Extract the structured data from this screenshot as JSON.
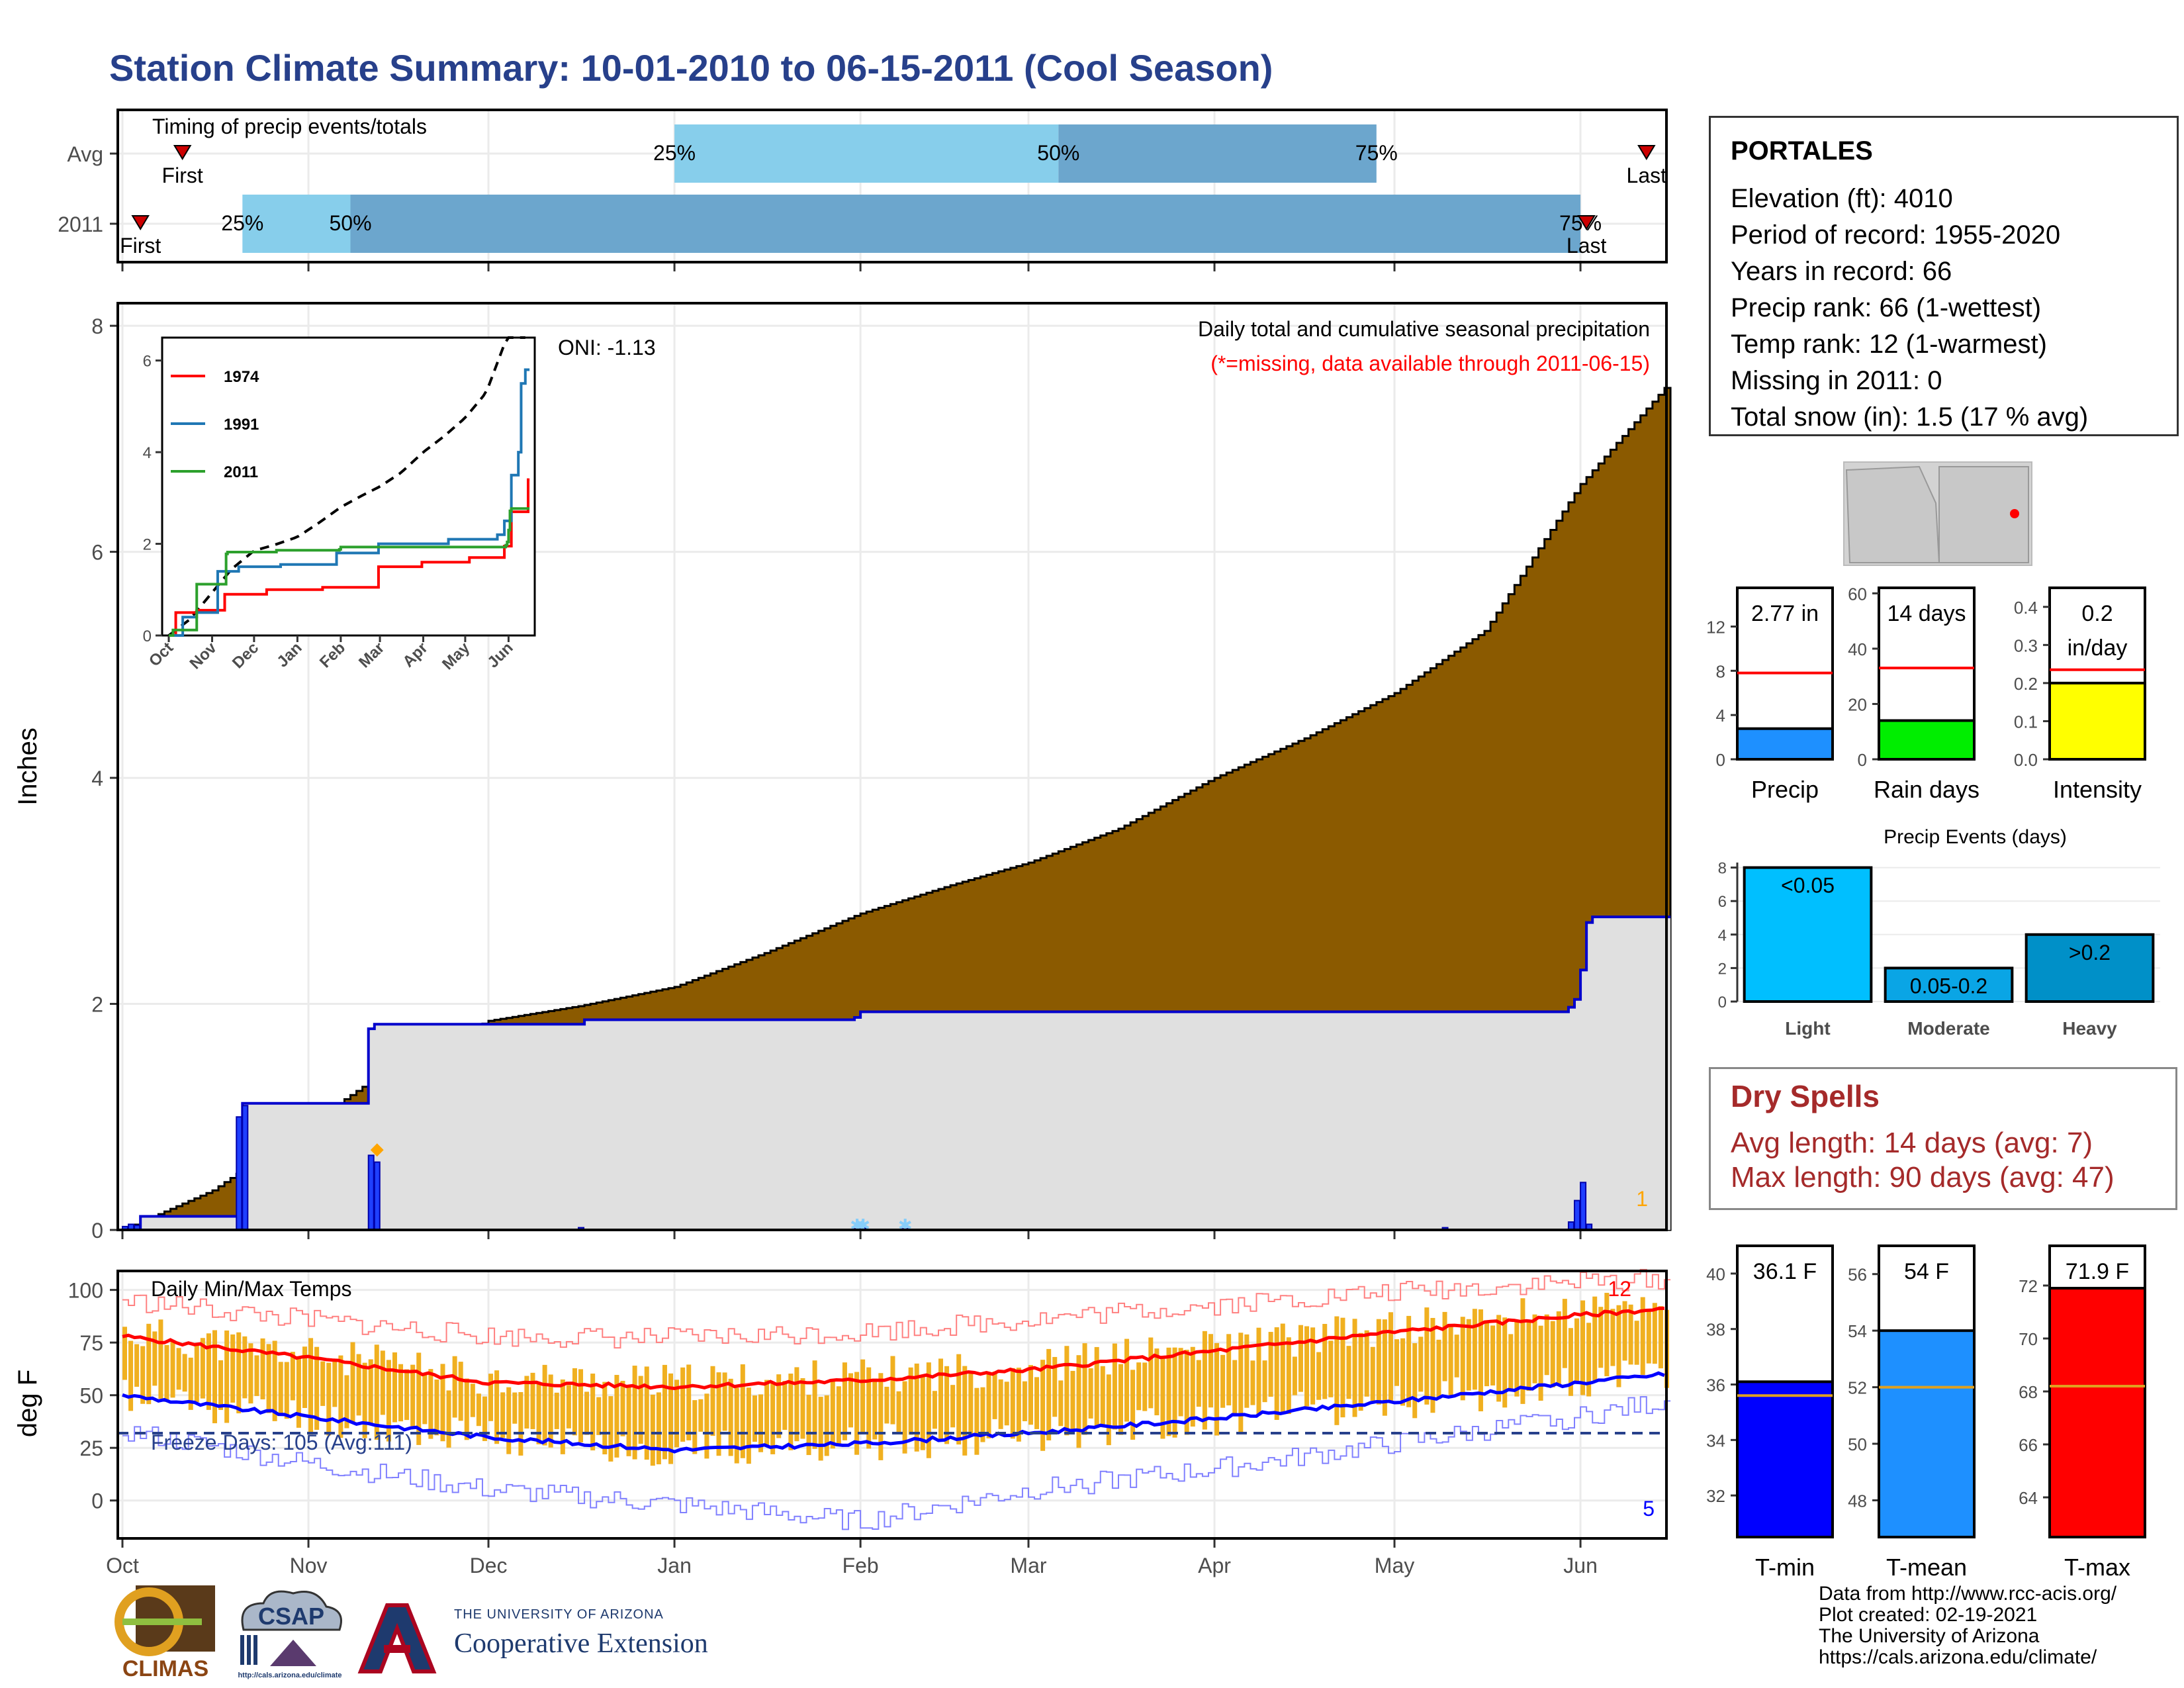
{
  "page": {
    "title": "Station Climate Summary: 10-01-2010 to 06-15-2011 (Cool Season)"
  },
  "colors": {
    "title_blue": "#27408B",
    "cum_fill": "#8B5A00",
    "avg_fill": "#E0E0E0",
    "daily_bar": "#1F3FFF",
    "timing_light": "#87CEEB",
    "timing_dark": "#6CA6CD",
    "temp_bar": "#F0B020",
    "tmax_line": "#FF0000",
    "tmin_line": "#0000FF",
    "freeze_line": "#27408B",
    "dry_red": "#A52A2A"
  },
  "station": {
    "name": "PORTALES",
    "lines": [
      "Elevation (ft): 4010",
      "Period of record: 1955-2020",
      "Years in record: 66",
      "Precip rank: 66 (1-wettest)",
      "Temp rank: 12 (1-warmest)",
      "Missing in 2011: 0",
      "Total snow (in): 1.5 (17 % avg)"
    ]
  },
  "dry_spells": {
    "title": "Dry Spells",
    "avg_line": "Avg length: 14 days (avg: 7)",
    "max_line": "Max length: 90 days (avg: 47)"
  },
  "credits": {
    "lines": [
      "Data from http://www.rcc-acis.org/",
      "Plot created: 02-19-2021",
      "The University of Arizona",
      "https://cals.arizona.edu/climate/"
    ]
  },
  "logos": {
    "climas": "CLIMAS",
    "csap": "CSAP",
    "csap_url": "http://cals.arizona.edu/climate",
    "ua_small": "THE UNIVERSITY OF ARIZONA",
    "ua_big": "Cooperative Extension"
  },
  "chart_data": [
    {
      "id": "timing",
      "type": "bar",
      "title": "Timing of precip events/totals",
      "xlim": [
        "2010-10-01",
        "2011-06-15"
      ],
      "rows": [
        {
          "label": "Avg",
          "first": "2010-10-11",
          "p25": "2011-01-01",
          "p50": "2011-03-06",
          "p75": "2011-04-28",
          "last": "2011-06-12"
        },
        {
          "label": "2011",
          "first": "2010-10-04",
          "p25": "2010-10-21",
          "p50": "2010-11-08",
          "p75": "2011-06-01",
          "last": "2011-06-02"
        }
      ],
      "marker_labels": {
        "first": "First",
        "last": "Last",
        "p25": "25%",
        "p50": "50%",
        "p75": "75%"
      }
    },
    {
      "id": "precip_main",
      "type": "area",
      "ylabel": "Inches",
      "annotation_title": "Daily total and cumulative seasonal precipitation",
      "annotation_missing": "(*=missing, data available through 2011-06-15)",
      "oni": "ONI: -1.13",
      "ylim": [
        0,
        8.2
      ],
      "yticks": [
        0,
        2,
        4,
        6,
        8
      ],
      "xticks": [
        "Oct",
        "Nov",
        "Dec",
        "Jan",
        "Feb",
        "Mar",
        "Apr",
        "May",
        "Jun"
      ],
      "xtick_dates": [
        "2010-10-01",
        "2010-11-01",
        "2010-12-01",
        "2011-01-01",
        "2011-02-01",
        "2011-03-01",
        "2011-04-01",
        "2011-05-01",
        "2011-06-01"
      ],
      "cum_avg": {
        "days": [
          0,
          15,
          30,
          45,
          61,
          76,
          92,
          107,
          123,
          138,
          151,
          166,
          182,
          197,
          212,
          227,
          243,
          257
        ],
        "values": [
          0.0,
          0.35,
          0.9,
          1.45,
          1.85,
          1.98,
          2.15,
          2.45,
          2.8,
          3.05,
          3.25,
          3.55,
          4.0,
          4.35,
          4.75,
          5.3,
          6.6,
          7.45
        ]
      },
      "cum_2011": {
        "days": [
          0,
          3,
          19,
          20,
          41,
          42,
          77,
          122,
          123,
          241,
          242,
          243,
          244,
          245,
          257
        ],
        "values": [
          0.0,
          0.12,
          0.12,
          1.12,
          1.78,
          1.82,
          1.86,
          1.88,
          1.93,
          1.97,
          2.04,
          2.3,
          2.72,
          2.77,
          2.77
        ]
      },
      "daily_bars": {
        "days": [
          0,
          1,
          2,
          19,
          20,
          41,
          42,
          76,
          122,
          123,
          130,
          220,
          241,
          242,
          243,
          244
        ],
        "values": [
          0.03,
          0.05,
          0.04,
          1.0,
          1.1,
          0.66,
          0.6,
          0.02,
          0.01,
          0.02,
          0.01,
          0.02,
          0.07,
          0.26,
          0.42,
          0.05
        ]
      },
      "snow_marks": {
        "days": [
          42,
          122,
          123,
          130
        ],
        "values": [
          0.68,
          0.0,
          0.0,
          0.0
        ]
      },
      "corner_label": "1"
    },
    {
      "id": "precip_inset",
      "type": "line",
      "ylim": [
        0,
        6.5
      ],
      "yticks": [
        0,
        2,
        4,
        6
      ],
      "xticks": [
        "Oct",
        "Nov",
        "Dec",
        "Jan",
        "Feb",
        "Mar",
        "Apr",
        "May",
        "Jun"
      ],
      "series": [
        {
          "name": "1974",
          "color": "#FF0000",
          "days": [
            0,
            5,
            20,
            40,
            70,
            110,
            150,
            181,
            215,
            240,
            245,
            250,
            257
          ],
          "values": [
            0.0,
            0.5,
            0.55,
            0.9,
            1.0,
            1.05,
            1.5,
            1.6,
            1.7,
            1.95,
            2.7,
            2.7,
            3.4
          ]
        },
        {
          "name": "1991",
          "color": "#1F77B4",
          "days": [
            0,
            10,
            20,
            35,
            50,
            80,
            120,
            150,
            200,
            235,
            240,
            245,
            250,
            252,
            255,
            257
          ],
          "values": [
            0.0,
            0.4,
            0.5,
            1.4,
            1.5,
            1.55,
            1.8,
            2.0,
            2.1,
            2.2,
            2.5,
            3.5,
            4.0,
            5.5,
            5.8,
            5.8
          ]
        },
        {
          "name": "2011",
          "color": "#2CA02C",
          "days": [
            0,
            3,
            19,
            20,
            41,
            42,
            77,
            122,
            123,
            241,
            242,
            243,
            244,
            245,
            257
          ],
          "values": [
            0.0,
            0.12,
            0.12,
            1.12,
            1.78,
            1.82,
            1.86,
            1.88,
            1.93,
            1.97,
            2.04,
            2.3,
            2.72,
            2.77,
            2.77
          ]
        }
      ],
      "avg": {
        "days": [
          0,
          15,
          30,
          45,
          61,
          76,
          92,
          107,
          123,
          138,
          151,
          166,
          182,
          197,
          212,
          227,
          243,
          257
        ],
        "values": [
          0.0,
          0.35,
          0.9,
          1.45,
          1.85,
          1.98,
          2.15,
          2.45,
          2.8,
          3.05,
          3.25,
          3.55,
          4.0,
          4.35,
          4.75,
          5.3,
          6.6,
          7.45
        ]
      }
    },
    {
      "id": "bars_precip",
      "type": "bar",
      "value_label": "2.77 in",
      "category": "Precip",
      "ylim": [
        0,
        15.5
      ],
      "yticks": [
        0,
        4,
        8,
        12
      ],
      "value": 2.77,
      "avg": 7.8,
      "color": "#1E90FF"
    },
    {
      "id": "bars_raindays",
      "type": "bar",
      "value_label": "14 days",
      "category": "Rain days",
      "ylim": [
        0,
        62
      ],
      "yticks": [
        0,
        20,
        40,
        60
      ],
      "value": 14,
      "avg": 33,
      "color": "#00EE00"
    },
    {
      "id": "bars_intensity",
      "type": "bar",
      "value_label_1": "0.2",
      "value_label_2": "in/day",
      "category": "Intensity",
      "ylim": [
        0,
        0.45
      ],
      "yticks": [
        0.0,
        0.1,
        0.2,
        0.3,
        0.4
      ],
      "ytick_labels": [
        "0.0",
        "0.1",
        "0.2",
        "0.3",
        "0.4"
      ],
      "value": 0.2,
      "avg": 0.235,
      "color": "#FFFF00"
    },
    {
      "id": "precip_events",
      "type": "bar",
      "title": "Precip Events (days)",
      "categories": [
        "Light",
        "Moderate",
        "Heavy"
      ],
      "bar_labels": [
        "<0.05",
        "0.05-0.2",
        ">0.2"
      ],
      "values": [
        8,
        2,
        4
      ],
      "ylim": [
        0,
        8.3
      ],
      "yticks": [
        0,
        2,
        4,
        6,
        8
      ],
      "colors": [
        "#00BFFF",
        "#0AA5E5",
        "#0090C8"
      ]
    },
    {
      "id": "temps",
      "type": "line",
      "ylabel": "deg F",
      "title": "Daily Min/Max Temps",
      "freeze_label": "Freeze Days: 105 (Avg:111)",
      "freeze_line": 32,
      "ylim": [
        -18,
        109
      ],
      "yticks": [
        0,
        25,
        50,
        75,
        100
      ],
      "xticks": [
        "Oct",
        "Nov",
        "Dec",
        "Jan",
        "Feb",
        "Mar",
        "Apr",
        "May",
        "Jun"
      ],
      "avg_tmax": {
        "days": [
          0,
          30,
          61,
          92,
          123,
          151,
          182,
          212,
          243,
          257
        ],
        "values": [
          78,
          68,
          56,
          54,
          57,
          62,
          71,
          80,
          88,
          91
        ]
      },
      "avg_tmin": {
        "days": [
          0,
          30,
          61,
          92,
          123,
          151,
          182,
          212,
          243,
          257
        ],
        "values": [
          50,
          40,
          30,
          24,
          27,
          32,
          39,
          47,
          56,
          60
        ]
      },
      "rec_high": {
        "days": [
          0,
          30,
          61,
          92,
          123,
          151,
          182,
          212,
          243,
          257
        ],
        "values": [
          95,
          86,
          78,
          77,
          80,
          86,
          93,
          99,
          104,
          105
        ]
      },
      "rec_low": {
        "days": [
          0,
          30,
          61,
          92,
          123,
          151,
          182,
          212,
          243,
          257
        ],
        "values": [
          33,
          18,
          5,
          -2,
          -10,
          5,
          15,
          27,
          40,
          47
        ]
      },
      "corner_high": "12",
      "corner_low": "5"
    },
    {
      "id": "temp_tmin",
      "type": "bar",
      "value_label": "36.1 F",
      "category": "T-min",
      "ylim": [
        30.5,
        41
      ],
      "yticks": [
        32,
        34,
        36,
        38,
        40
      ],
      "value": 36.1,
      "avg": 35.6,
      "color": "#0000FF"
    },
    {
      "id": "temp_tmean",
      "type": "bar",
      "value_label": "54 F",
      "category": "T-mean",
      "ylim": [
        46.7,
        57
      ],
      "yticks": [
        48,
        50,
        52,
        54,
        56
      ],
      "value": 54,
      "avg": 52,
      "color": "#1E90FF"
    },
    {
      "id": "temp_tmax",
      "type": "bar",
      "value_label": "71.9 F",
      "category": "T-max",
      "ylim": [
        62.5,
        73.5
      ],
      "yticks": [
        64,
        66,
        68,
        70,
        72
      ],
      "value": 71.9,
      "avg": 68.2,
      "color": "#FF0000"
    }
  ]
}
